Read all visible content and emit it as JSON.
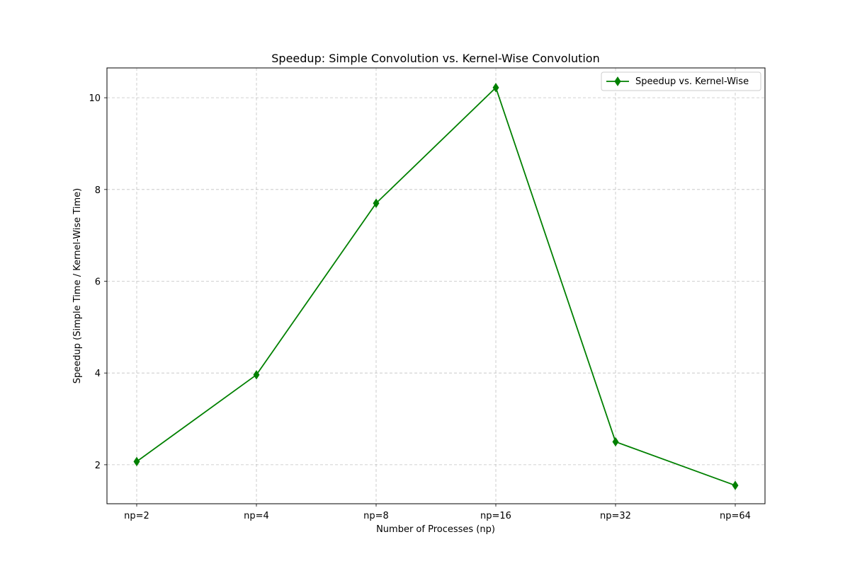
{
  "chart_data": {
    "type": "line",
    "title": "Speedup: Simple Convolution vs. Kernel-Wise Convolution",
    "xlabel": "Number of Processes (np)",
    "ylabel": "Speedup (Simple Time / Kernel-Wise Time)",
    "categories": [
      "np=2",
      "np=4",
      "np=8",
      "np=16",
      "np=32",
      "np=64"
    ],
    "series": [
      {
        "name": "Speedup vs. Kernel-Wise",
        "values": [
          2.07,
          3.96,
          7.7,
          10.22,
          2.5,
          1.55
        ],
        "color": "#008000",
        "marker": "diamond"
      }
    ],
    "ylim": [
      1.15,
      10.65
    ],
    "yticks": [
      2,
      4,
      6,
      8,
      10
    ],
    "grid": true,
    "grid_style": "dashed",
    "legend_position": "top-right"
  }
}
